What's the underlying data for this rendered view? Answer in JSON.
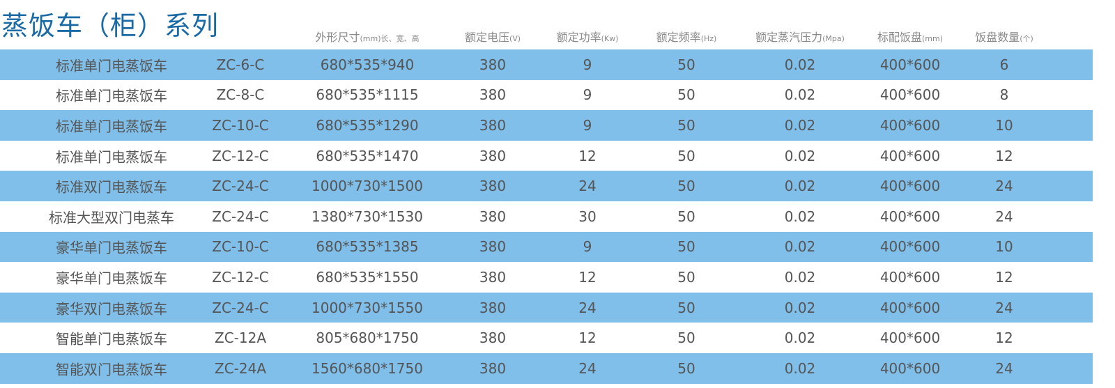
{
  "title": "蒸饭车（柜）系列",
  "headers": [
    {
      "label": "外形尺寸",
      "unit": "(mm)长、宽、高"
    },
    {
      "label": "额定电压",
      "unit": "(V)"
    },
    {
      "label": "额定功率",
      "unit": "(Kw)"
    },
    {
      "label": "额定频率",
      "unit": "(Hz)"
    },
    {
      "label": "额定蒸汽压力",
      "unit": "(Mpa)"
    },
    {
      "label": "标配饭盘",
      "unit": "(mm)"
    },
    {
      "label": "饭盘数量",
      "unit": "(个)"
    }
  ],
  "colors": {
    "stripe": "#7fbfea",
    "title": "#1a6aa6",
    "text": "#555555"
  },
  "rows": [
    [
      "标准单门电蒸饭车",
      "ZC-6-C",
      "680*535*940",
      "380",
      "9",
      "50",
      "0.02",
      "400*600",
      "6"
    ],
    [
      "标准单门电蒸饭车",
      "ZC-8-C",
      "680*535*1115",
      "380",
      "9",
      "50",
      "0.02",
      "400*600",
      "8"
    ],
    [
      "标准单门电蒸饭车",
      "ZC-10-C",
      "680*535*1290",
      "380",
      "9",
      "50",
      "0.02",
      "400*600",
      "10"
    ],
    [
      "标准单门电蒸饭车",
      "ZC-12-C",
      "680*535*1470",
      "380",
      "12",
      "50",
      "0.02",
      "400*600",
      "12"
    ],
    [
      "标准双门电蒸饭车",
      "ZC-24-C",
      "1000*730*1500",
      "380",
      "24",
      "50",
      "0.02",
      "400*600",
      "24"
    ],
    [
      "标准大型双门电蒸车",
      "ZC-24-C",
      "1380*730*1530",
      "380",
      "30",
      "50",
      "0.02",
      "400*600",
      "24"
    ],
    [
      "豪华单门电蒸饭车",
      "ZC-10-C",
      "680*535*1385",
      "380",
      "9",
      "50",
      "0.02",
      "400*600",
      "10"
    ],
    [
      "豪华单门电蒸饭车",
      "ZC-12-C",
      "680*535*1550",
      "380",
      "12",
      "50",
      "0.02",
      "400*600",
      "12"
    ],
    [
      "豪华双门电蒸饭车",
      "ZC-24-C",
      "1000*730*1550",
      "380",
      "24",
      "50",
      "0.02",
      "400*600",
      "24"
    ],
    [
      "智能单门电蒸饭车",
      "ZC-12A",
      "805*680*1750",
      "380",
      "12",
      "50",
      "0.02",
      "400*600",
      "12"
    ],
    [
      "智能双门电蒸饭车",
      "ZC-24A",
      "1560*680*1750",
      "380",
      "24",
      "50",
      "0.02",
      "400*600",
      "24"
    ]
  ]
}
